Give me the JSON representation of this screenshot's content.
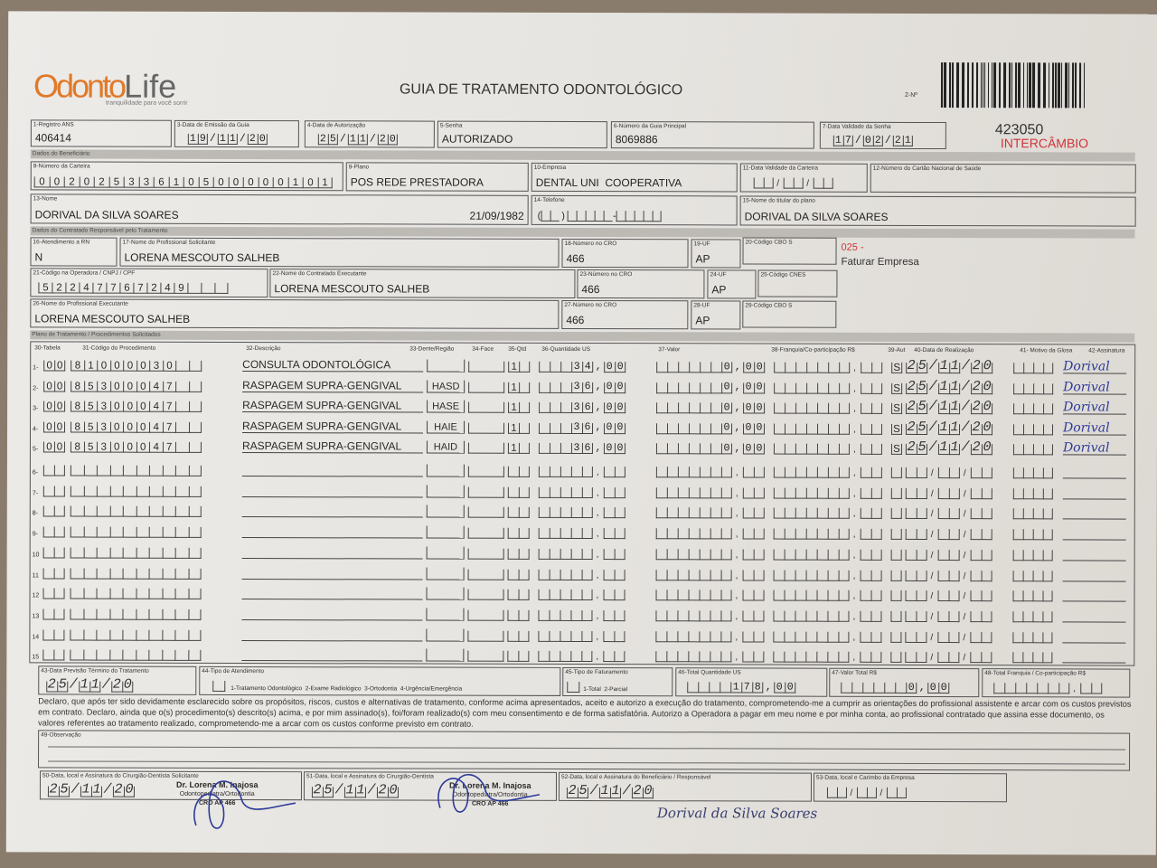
{
  "logo": {
    "brand_orange": "Odonto",
    "brand_grey": "Life",
    "tagline": "tranquilidade para você sorrir"
  },
  "title": "GUIA DE TRATAMENTO ODONTOLÓGICO",
  "guide_number_label": "2-Nº",
  "barcode_icon": "barcode",
  "header": {
    "registro_ans": {
      "label": "1-Registro ANS",
      "value": "406414"
    },
    "data_emissao": {
      "label": "3-Data de Emissão da Guia",
      "value": "19/11/20"
    },
    "data_autorizacao": {
      "label": "4-Data de Autorização",
      "value": "25/11/20"
    },
    "senha": {
      "label": "5-Senha",
      "value": "AUTORIZADO"
    },
    "guia_principal": {
      "label": "6-Número da Guia Principal",
      "value": "8069886"
    },
    "validade_senha": {
      "label": "7-Data Validade da Senha",
      "value": "17/02/21"
    },
    "code": "423050",
    "intercambio": "INTERCÂMBIO"
  },
  "section_beneficiario": "Dados do Beneficiário",
  "beneficiario": {
    "carteira": {
      "label": "8-Número da Carteira",
      "value": "00202533610500000101"
    },
    "plano": {
      "label": "9-Plano",
      "value": "POS REDE PRESTADORA"
    },
    "empresa": {
      "label": "10-Empresa",
      "value": "DENTAL UNI  COOPERATIVA"
    },
    "validade_carteira": {
      "label": "11-Data Validade da Carteira",
      "value": ""
    },
    "cns": {
      "label": "12-Número do Cartão Nacional de Saúde",
      "value": ""
    },
    "nome": {
      "label": "13-Nome",
      "value": "DORIVAL DA SILVA SOARES",
      "birth": "21/09/1982"
    },
    "telefone": {
      "label": "14-Telefone",
      "value": ""
    },
    "titular": {
      "label": "15-Nome do titular do plano",
      "value": "DORIVAL DA SILVA SOARES"
    }
  },
  "section_contratado": "Dados do Contratado Responsável pelo Tratamento",
  "contratado": {
    "rn": {
      "label": "16-Atendimento a RN",
      "value": "N"
    },
    "solicitante": {
      "label": "17-Nome do Profissional Solicitante",
      "value": "LORENA MESCOUTO SALHEB"
    },
    "cro18": {
      "label": "18-Número no CRO",
      "value": "466"
    },
    "uf19": {
      "label": "19-UF",
      "value": "AP"
    },
    "cbo20": {
      "label": "20-Código CBO S",
      "value": ""
    },
    "billing_code": "025 -",
    "billing_text": "Faturar Empresa",
    "codigo_operadora": {
      "label": "21-Código na Operadora / CNPJ / CPF",
      "value": "52247767249"
    },
    "executante": {
      "label": "22-Nome do Contratado Executante",
      "value": "LORENA MESCOUTO SALHEB"
    },
    "cro23": {
      "label": "23-Número no CRO",
      "value": "466"
    },
    "uf24": {
      "label": "24-UF",
      "value": "AP"
    },
    "cnes": {
      "label": "25-Código CNES",
      "value": ""
    },
    "prof_executante": {
      "label": "26-Nome do Profissional Executante",
      "value": "LORENA MESCOUTO SALHEB"
    },
    "cro27": {
      "label": "27-Número no CRO",
      "value": "466"
    },
    "uf28": {
      "label": "28-UF",
      "value": "AP"
    },
    "cbo29": {
      "label": "29-Código CBO S",
      "value": ""
    }
  },
  "section_plano": "Plano de Tratamento / Procedimentos Solicitados",
  "procedures": {
    "headers": [
      "30-Tabela",
      "31-Código do Procedimento",
      "32-Descrição",
      "33-Dente/Região",
      "34-Face",
      "35-Qtd",
      "36-Quantidade US",
      "37-Valor",
      "38-Franquia/Co-participação R$",
      "39-Aut",
      "40-Data de Realização",
      "41- Motivo da Glosa",
      "42-Assinatura"
    ],
    "rows": [
      {
        "n": "1-",
        "tabela": "00",
        "codigo": "81000030",
        "descricao": "CONSULTA ODONTOLÓGICA",
        "dente": "",
        "face": "",
        "qtd": "1",
        "us": "34,00",
        "valor": "0,00",
        "aut": "S",
        "data": "25/11/20",
        "assinatura": "Dorival"
      },
      {
        "n": "2-",
        "tabela": "00",
        "codigo": "85300047",
        "descricao": "RASPAGEM SUPRA-GENGIVAL",
        "dente": "HASD",
        "face": "",
        "qtd": "1",
        "us": "36,00",
        "valor": "0,00",
        "aut": "S",
        "data": "25/11/20",
        "assinatura": "Dorival"
      },
      {
        "n": "3-",
        "tabela": "00",
        "codigo": "85300047",
        "descricao": "RASPAGEM SUPRA-GENGIVAL",
        "dente": "HASE",
        "face": "",
        "qtd": "1",
        "us": "36,00",
        "valor": "0,00",
        "aut": "S",
        "data": "25/11/20",
        "assinatura": "Dorival"
      },
      {
        "n": "4-",
        "tabela": "00",
        "codigo": "85300047",
        "descricao": "RASPAGEM SUPRA-GENGIVAL",
        "dente": "HAIE",
        "face": "",
        "qtd": "1",
        "us": "36,00",
        "valor": "0,00",
        "aut": "S",
        "data": "25/11/20",
        "assinatura": "Dorival"
      },
      {
        "n": "5-",
        "tabela": "00",
        "codigo": "85300047",
        "descricao": "RASPAGEM SUPRA-GENGIVAL",
        "dente": "HAID",
        "face": "",
        "qtd": "1",
        "us": "36,00",
        "valor": "0,00",
        "aut": "S",
        "data": "25/11/20",
        "assinatura": "Dorival"
      },
      {
        "n": "6-"
      },
      {
        "n": "7-"
      },
      {
        "n": "8-"
      },
      {
        "n": "9-"
      },
      {
        "n": "10"
      },
      {
        "n": "11"
      },
      {
        "n": "12"
      },
      {
        "n": "13"
      },
      {
        "n": "14"
      },
      {
        "n": "15"
      }
    ]
  },
  "footer": {
    "previsao": {
      "label": "43-Data Previsão Término do Tratamento",
      "value": "25/11/20"
    },
    "tipo_atendimento": {
      "label": "44-Tipo de Atendimento",
      "options": "1-Tratamento Odontológico  2-Exame Radiológico  3-Ortodontia  4-Urgência/Emergência"
    },
    "tipo_faturamento": {
      "label": "45-Tipo de Faturamento",
      "options": "1-Total  2-Parcial"
    },
    "total_us": {
      "label": "46-Total Quantidade US",
      "value": "178,00"
    },
    "valor_total": {
      "label": "47-Valor Total R$",
      "value": "0,00"
    },
    "total_franquia": {
      "label": "48-Total Franquia / Co-participação R$",
      "value": ""
    },
    "declaration": "Declaro, que após ter sido devidamente esclarecido sobre os propósitos, riscos, custos e alternativas de tratamento, conforme acima apresentados, aceito e autorizo a execução do tratamento, comprometendo-me a cumprir as orientações do profissional assistente e arcar com os custos previstos em contrato. Declaro, ainda que o(s) procedimento(s) descrito(s) acima, e por mim assinado(s), foi/foram realizado(s) com meu consentimento e de forma satisfatória. Autorizo a Operadora a pagar em meu nome e por minha conta, ao profissional contratado que assina esse documento, os valores referentes ao tratamento realizado, comprometendo-me a arcar com os custos conforme previsto em contrato.",
    "observacao": {
      "label": "49-Observação",
      "value": ""
    },
    "sig50": {
      "label": "50-Data, local e Assinatura do Cirurgião-Dentista Solicitante",
      "date": "25/11/20"
    },
    "sig51": {
      "label": "51-Data, local e Assinatura do Cirurgião-Dentista",
      "date": "25/11/20"
    },
    "sig52": {
      "label": "52-Data, local e Assinatura do Beneficiário / Responsável",
      "date": "25/11/20",
      "signature": "Dorival da Silva Soares"
    },
    "sig53": {
      "label": "53-Data, local e Carimbo da Empresa",
      "date": ""
    },
    "stamp": {
      "name": "Dr. Lorena M. Inajosa",
      "role": "Odontopediatra/Ortodontia",
      "cro": "CRO AP 466"
    }
  },
  "colors": {
    "brand_orange": "#e07a2a",
    "intercambio_red": "#d0323a",
    "ink_blue": "#2c3a9a"
  }
}
